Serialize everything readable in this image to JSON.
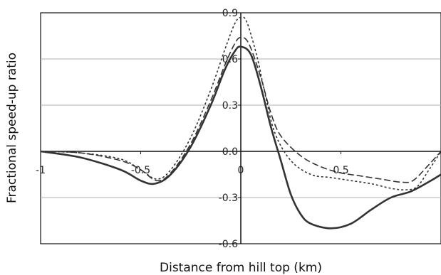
{
  "chart_data": {
    "type": "line",
    "title": "",
    "xlabel": "Distance from hill top (km)",
    "ylabel": "Fractional speed-up ratio",
    "xlim": [
      -1,
      1
    ],
    "ylim": [
      -0.6,
      0.9
    ],
    "x_ticks": [
      "-1",
      "-0.5",
      "0",
      "0.5"
    ],
    "x_tick_values": [
      -1,
      -0.5,
      0,
      0.5
    ],
    "y_ticks": [
      "0.9",
      "0.6",
      "0.3",
      "0.0",
      "-0.3",
      "-0.6"
    ],
    "y_tick_values": [
      0.9,
      0.6,
      0.3,
      0.0,
      -0.3,
      -0.6
    ],
    "grid": "horizontal",
    "legend": "none",
    "series": [
      {
        "style": "solid",
        "color": "#333333",
        "x": [
          -1.0,
          -0.8,
          -0.6,
          -0.5,
          -0.43,
          -0.35,
          -0.25,
          -0.15,
          -0.08,
          -0.03,
          0.0,
          0.05,
          0.1,
          0.15,
          0.2,
          0.25,
          0.3,
          0.35,
          0.45,
          0.55,
          0.65,
          0.75,
          0.85,
          0.95,
          1.0
        ],
        "y": [
          0.0,
          -0.04,
          -0.12,
          -0.19,
          -0.21,
          -0.15,
          0.03,
          0.3,
          0.53,
          0.65,
          0.68,
          0.63,
          0.42,
          0.16,
          -0.06,
          -0.28,
          -0.41,
          -0.47,
          -0.5,
          -0.47,
          -0.38,
          -0.3,
          -0.26,
          -0.19,
          -0.15
        ]
      },
      {
        "style": "dashed",
        "color": "#333333",
        "x": [
          -1.0,
          -0.8,
          -0.6,
          -0.5,
          -0.42,
          -0.35,
          -0.25,
          -0.15,
          -0.08,
          -0.03,
          0.0,
          0.04,
          0.1,
          0.15,
          0.2,
          0.3,
          0.4,
          0.5,
          0.6,
          0.7,
          0.8,
          0.86,
          0.93,
          1.0
        ],
        "y": [
          0.0,
          -0.01,
          -0.06,
          -0.12,
          -0.19,
          -0.14,
          0.05,
          0.33,
          0.56,
          0.7,
          0.74,
          0.7,
          0.48,
          0.25,
          0.1,
          -0.03,
          -0.1,
          -0.14,
          -0.16,
          -0.18,
          -0.2,
          -0.19,
          -0.1,
          0.0
        ]
      },
      {
        "style": "dotted",
        "color": "#333333",
        "x": [
          -1.0,
          -0.8,
          -0.6,
          -0.5,
          -0.42,
          -0.35,
          -0.25,
          -0.15,
          -0.08,
          -0.03,
          0.0,
          0.03,
          0.08,
          0.12,
          0.17,
          0.25,
          0.35,
          0.45,
          0.55,
          0.65,
          0.75,
          0.82,
          0.88,
          0.94,
          1.0
        ],
        "y": [
          0.0,
          -0.01,
          -0.05,
          -0.12,
          -0.18,
          -0.12,
          0.09,
          0.4,
          0.66,
          0.83,
          0.87,
          0.84,
          0.62,
          0.38,
          0.12,
          -0.06,
          -0.15,
          -0.17,
          -0.19,
          -0.21,
          -0.24,
          -0.25,
          -0.23,
          -0.12,
          0.0
        ]
      }
    ]
  }
}
